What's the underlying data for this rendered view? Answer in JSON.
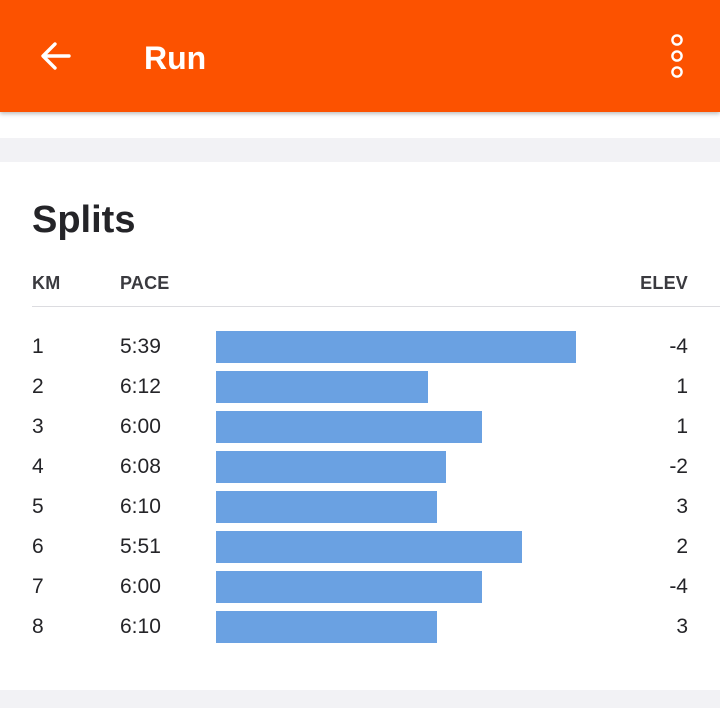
{
  "appbar": {
    "title": "Run",
    "back_icon": "arrow-left-icon",
    "more_icon": "more-vertical-icon",
    "color": "#fc5200"
  },
  "splits": {
    "title": "Splits",
    "headers": {
      "km": "KM",
      "pace": "PACE",
      "elev": "ELEV"
    },
    "bar_color": "#6aa1e2",
    "rows": [
      {
        "km": "1",
        "pace": "5:39",
        "elev": "-4",
        "pace_seconds": 339
      },
      {
        "km": "2",
        "pace": "6:12",
        "elev": "1",
        "pace_seconds": 372
      },
      {
        "km": "3",
        "pace": "6:00",
        "elev": "1",
        "pace_seconds": 360
      },
      {
        "km": "4",
        "pace": "6:08",
        "elev": "-2",
        "pace_seconds": 368
      },
      {
        "km": "5",
        "pace": "6:10",
        "elev": "3",
        "pace_seconds": 370
      },
      {
        "km": "6",
        "pace": "5:51",
        "elev": "2",
        "pace_seconds": 351
      },
      {
        "km": "7",
        "pace": "6:00",
        "elev": "-4",
        "pace_seconds": 360
      },
      {
        "km": "8",
        "pace": "6:10",
        "elev": "3",
        "pace_seconds": 370
      }
    ]
  }
}
